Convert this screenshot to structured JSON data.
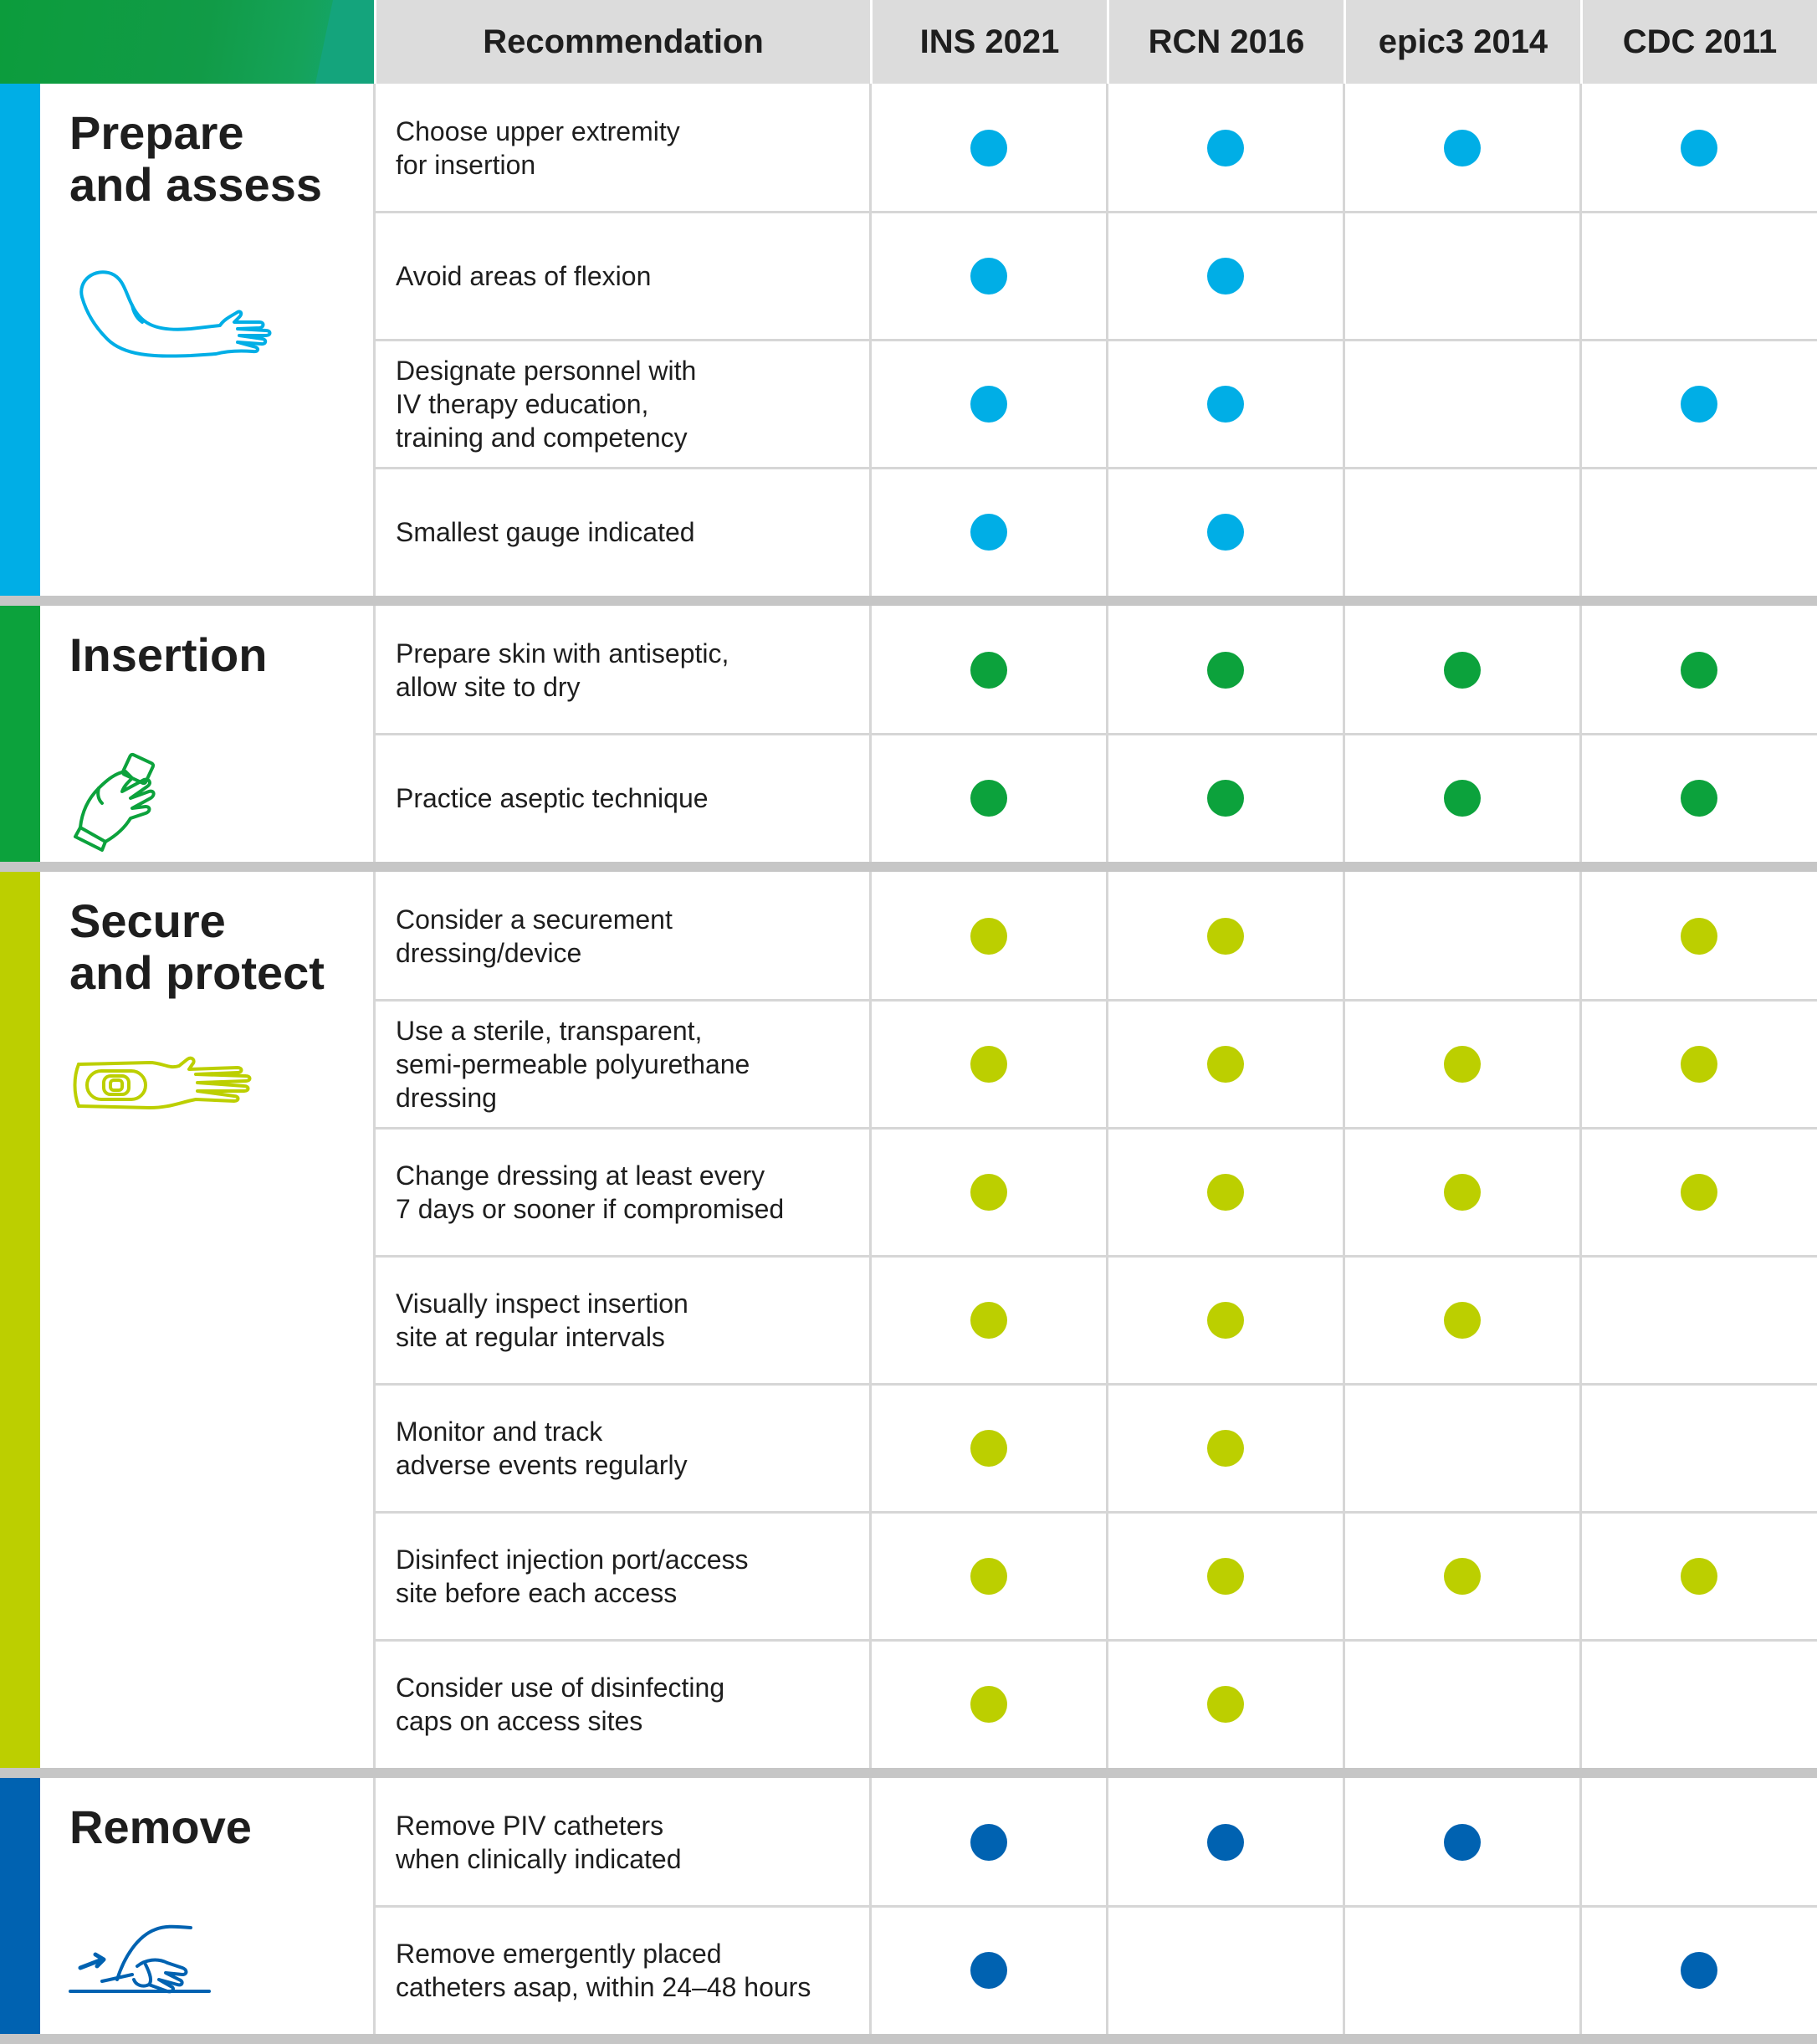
{
  "header": {
    "recommendation": "Recommendation",
    "columns": [
      "INS 2021",
      "RCN 2016",
      "epic3 2014",
      "CDC 2011"
    ]
  },
  "colors": {
    "prepare": "#00aee6",
    "insertion": "#0ca23c",
    "secure": "#bccf00",
    "remove": "#0062b1",
    "header_bg": "#dcdcdc",
    "separator": "#c6c6c6"
  },
  "sections": [
    {
      "key": "prepare",
      "title": "Prepare\nand assess",
      "icon": "arm-icon",
      "rows": [
        {
          "text": "Choose upper extremity\nfor insertion",
          "marks": [
            true,
            true,
            true,
            true
          ]
        },
        {
          "text": "Avoid areas of flexion",
          "marks": [
            true,
            true,
            false,
            false
          ]
        },
        {
          "text": "Designate personnel with\nIV therapy education,\ntraining and competency",
          "marks": [
            true,
            true,
            false,
            true
          ]
        },
        {
          "text": "Smallest gauge indicated",
          "marks": [
            true,
            true,
            false,
            false
          ]
        }
      ]
    },
    {
      "key": "insertion",
      "title": "Insertion",
      "icon": "gloved-hand-icon",
      "rows": [
        {
          "text": "Prepare skin with antiseptic,\nallow site to dry",
          "marks": [
            true,
            true,
            true,
            true
          ]
        },
        {
          "text": "Practice aseptic technique",
          "marks": [
            true,
            true,
            true,
            true
          ]
        }
      ]
    },
    {
      "key": "secure",
      "title": "Secure\nand protect",
      "icon": "dressed-arm-icon",
      "rows": [
        {
          "text": "Consider a securement\ndressing/device",
          "marks": [
            true,
            true,
            false,
            true
          ]
        },
        {
          "text": "Use a sterile, transparent,\nsemi-permeable polyurethane\ndressing",
          "marks": [
            true,
            true,
            true,
            true
          ]
        },
        {
          "text": "Change dressing at least every\n7 days or sooner if compromised",
          "marks": [
            true,
            true,
            true,
            true
          ]
        },
        {
          "text": "Visually inspect insertion\nsite at regular intervals",
          "marks": [
            true,
            true,
            true,
            false
          ]
        },
        {
          "text": "Monitor and track\nadverse events regularly",
          "marks": [
            true,
            true,
            false,
            false
          ]
        },
        {
          "text": "Disinfect injection port/access\nsite before each access",
          "marks": [
            true,
            true,
            true,
            true
          ]
        },
        {
          "text": "Consider use of disinfecting\ncaps on access sites",
          "marks": [
            true,
            true,
            false,
            false
          ]
        }
      ]
    },
    {
      "key": "remove",
      "title": "Remove",
      "icon": "catheter-removal-icon",
      "rows": [
        {
          "text": "Remove PIV catheters\nwhen clinically indicated",
          "marks": [
            true,
            true,
            true,
            false
          ]
        },
        {
          "text": "Remove emergently placed\ncatheters asap, within 24–48 hours",
          "marks": [
            true,
            false,
            false,
            true
          ]
        }
      ]
    }
  ]
}
